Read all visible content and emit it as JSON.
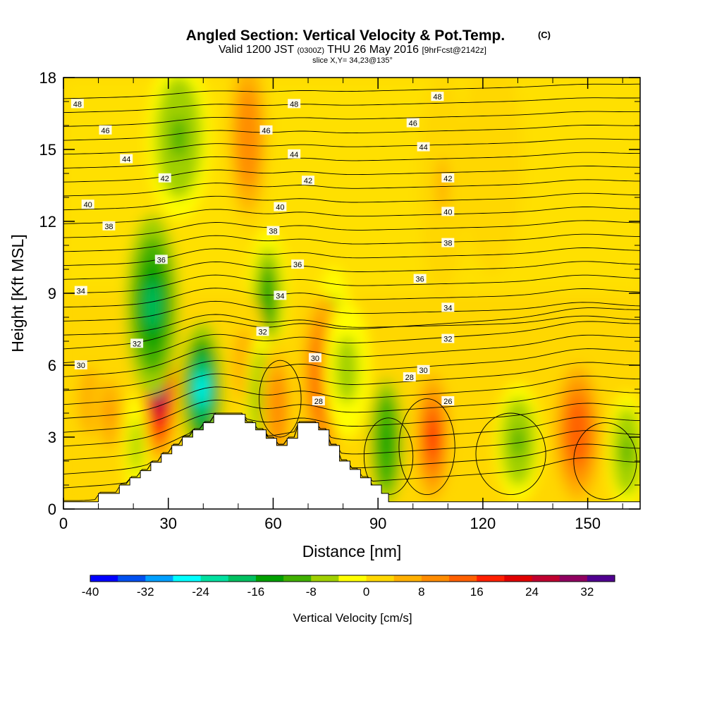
{
  "chart_data": {
    "type": "heatmap",
    "title": "Angled Section: Vertical Velocity & Pot.Temp.",
    "title_unit": "(C)",
    "subtitle": {
      "valid": "Valid 1200 JST",
      "utc": "(0300Z)",
      "date": "THU 26 May 2016",
      "forecast": "[9hrFcst@2142z]"
    },
    "slice_label": "slice X,Y= 34,23@135°",
    "xlabel": "Distance [nm]",
    "ylabel": "Height [Kft MSL]",
    "xlim": [
      0,
      165
    ],
    "ylim": [
      0,
      18
    ],
    "x_ticks": [
      "0",
      "30",
      "60",
      "90",
      "120",
      "150"
    ],
    "y_ticks": [
      "0",
      "3",
      "6",
      "9",
      "12",
      "15",
      "18"
    ],
    "colorbar": {
      "label": "Vertical Velocity [cm/s]",
      "tick_labels": [
        "-40",
        "-32",
        "-24",
        "-16",
        "-8",
        "0",
        "8",
        "16",
        "24",
        "32"
      ],
      "colors": [
        "#0000ff",
        "#0050f0",
        "#00a0ff",
        "#00ffff",
        "#00e0a0",
        "#00c060",
        "#00a000",
        "#40b000",
        "#a0d000",
        "#ffff00",
        "#ffd700",
        "#ffb000",
        "#ff8c00",
        "#ff6000",
        "#ff2000",
        "#e00000",
        "#c00030",
        "#900060",
        "#500090"
      ]
    },
    "terrain": [
      [
        0,
        0.3
      ],
      [
        10,
        0.3
      ],
      [
        10,
        0.65
      ],
      [
        16,
        0.65
      ],
      [
        16,
        1.0
      ],
      [
        19,
        1.0
      ],
      [
        19,
        1.3
      ],
      [
        22,
        1.3
      ],
      [
        22,
        1.6
      ],
      [
        25,
        1.6
      ],
      [
        25,
        1.95
      ],
      [
        28,
        1.95
      ],
      [
        28,
        2.3
      ],
      [
        31,
        2.3
      ],
      [
        31,
        2.65
      ],
      [
        34,
        2.65
      ],
      [
        34,
        3.0
      ],
      [
        37,
        3.0
      ],
      [
        37,
        3.3
      ],
      [
        40,
        3.3
      ],
      [
        40,
        3.6
      ],
      [
        43,
        3.6
      ],
      [
        43,
        3.95
      ],
      [
        52,
        3.95
      ],
      [
        52,
        3.6
      ],
      [
        55,
        3.6
      ],
      [
        55,
        3.3
      ],
      [
        58,
        3.3
      ],
      [
        58,
        2.95
      ],
      [
        61,
        2.95
      ],
      [
        61,
        2.65
      ],
      [
        64,
        2.65
      ],
      [
        64,
        2.95
      ],
      [
        67,
        2.95
      ],
      [
        67,
        3.6
      ],
      [
        73,
        3.6
      ],
      [
        73,
        3.3
      ],
      [
        76,
        3.3
      ],
      [
        76,
        2.65
      ],
      [
        79,
        2.65
      ],
      [
        79,
        2.0
      ],
      [
        82,
        2.0
      ],
      [
        82,
        1.65
      ],
      [
        85,
        1.65
      ],
      [
        85,
        1.3
      ],
      [
        88,
        1.3
      ],
      [
        88,
        1.0
      ],
      [
        91,
        1.0
      ],
      [
        91,
        0.65
      ],
      [
        93,
        0.65
      ],
      [
        93,
        0.3
      ],
      [
        165,
        0.3
      ]
    ],
    "velocity_cells": [
      {
        "x": 29,
        "z": 5.2,
        "w": 2.3,
        "h": 1.6,
        "v": 40
      },
      {
        "x": 42,
        "z": 5.0,
        "w": 2.8,
        "h": 1.5,
        "v": -30
      },
      {
        "x": 27,
        "z": 8.5,
        "w": 3.5,
        "h": 2.0,
        "v": -22
      },
      {
        "x": 35,
        "z": 15.5,
        "w": 4,
        "h": 1.8,
        "v": -10
      },
      {
        "x": 56,
        "z": 15.5,
        "w": 3,
        "h": 2.2,
        "v": 12
      },
      {
        "x": 62,
        "z": 8.8,
        "w": 2.5,
        "h": 1.5,
        "v": -14
      },
      {
        "x": 82,
        "z": 7.8,
        "w": 2,
        "h": 1.2,
        "v": -8
      },
      {
        "x": 55,
        "z": 6.0,
        "w": 3,
        "h": 1.6,
        "v": 8
      },
      {
        "x": 60,
        "z": 4.5,
        "w": 2,
        "h": 1.5,
        "v": -10
      },
      {
        "x": 65,
        "z": 4.2,
        "w": 2.2,
        "h": 1.6,
        "v": 12
      },
      {
        "x": 79,
        "z": 5.5,
        "w": 2.8,
        "h": 1.8,
        "v": 18
      },
      {
        "x": 86,
        "z": 5.8,
        "w": 3,
        "h": 1.5,
        "v": -9
      },
      {
        "x": 98,
        "z": 2.8,
        "w": 2.2,
        "h": 1.4,
        "v": -18
      },
      {
        "x": 112,
        "z": 3.0,
        "w": 2.3,
        "h": 1.4,
        "v": 20
      },
      {
        "x": 138,
        "z": 2.8,
        "w": 3,
        "h": 1.3,
        "v": -12
      },
      {
        "x": 156,
        "z": 3.2,
        "w": 3,
        "h": 1.5,
        "v": 18
      },
      {
        "x": 171,
        "z": 2.4,
        "w": 2.5,
        "h": 1.3,
        "v": -10
      },
      {
        "x": 115,
        "z": 13.5,
        "w": 3,
        "h": 2.5,
        "v": 5
      },
      {
        "x": 130,
        "z": 14.5,
        "w": 4,
        "h": 2.5,
        "v": 4
      },
      {
        "x": 22,
        "z": 2.6,
        "w": 1.5,
        "h": 1.2,
        "v": -8
      },
      {
        "x": 8,
        "z": 4.5,
        "w": 3,
        "h": 1.5,
        "v": 6
      },
      {
        "x": 14,
        "z": 4.0,
        "w": 2,
        "h": 1.0,
        "v": 10
      }
    ],
    "theta_contours": [
      {
        "label": "26",
        "base": 0.3
      },
      {
        "label": "28",
        "base": 1.3
      },
      {
        "label": "30",
        "base": 2.5
      },
      {
        "label": "32",
        "base": 3.8
      },
      {
        "label": "34",
        "base": 5.1
      },
      {
        "label": "36",
        "base": 6.3
      },
      {
        "label": "38",
        "base": 7.4
      },
      {
        "label": "40",
        "base": 8.4
      },
      {
        "label": "42",
        "base": 9.5
      },
      {
        "label": "44",
        "base": 10.6
      },
      {
        "label": "46",
        "base": 11.7
      },
      {
        "label": "48",
        "base": 12.8
      }
    ],
    "contour_labels": [
      {
        "text": "48",
        "x": 4,
        "z": 16.9
      },
      {
        "text": "46",
        "x": 12,
        "z": 15.8
      },
      {
        "text": "44",
        "x": 18,
        "z": 14.6
      },
      {
        "text": "42",
        "x": 29,
        "z": 13.8
      },
      {
        "text": "40",
        "x": 7,
        "z": 12.7
      },
      {
        "text": "38",
        "x": 13,
        "z": 11.8
      },
      {
        "text": "36",
        "x": 28,
        "z": 10.4
      },
      {
        "text": "34",
        "x": 5,
        "z": 9.1
      },
      {
        "text": "32",
        "x": 21,
        "z": 6.9
      },
      {
        "text": "30",
        "x": 5,
        "z": 6.0
      },
      {
        "text": "48",
        "x": 66,
        "z": 16.9
      },
      {
        "text": "46",
        "x": 58,
        "z": 15.8
      },
      {
        "text": "44",
        "x": 66,
        "z": 14.8
      },
      {
        "text": "42",
        "x": 70,
        "z": 13.7
      },
      {
        "text": "40",
        "x": 62,
        "z": 12.6
      },
      {
        "text": "38",
        "x": 60,
        "z": 11.6
      },
      {
        "text": "36",
        "x": 67,
        "z": 10.2
      },
      {
        "text": "34",
        "x": 62,
        "z": 8.9
      },
      {
        "text": "32",
        "x": 57,
        "z": 7.4
      },
      {
        "text": "30",
        "x": 72,
        "z": 6.3
      },
      {
        "text": "28",
        "x": 73,
        "z": 4.5
      },
      {
        "text": "48",
        "x": 107,
        "z": 17.2
      },
      {
        "text": "46",
        "x": 100,
        "z": 16.1
      },
      {
        "text": "44",
        "x": 103,
        "z": 15.1
      },
      {
        "text": "42",
        "x": 110,
        "z": 13.8
      },
      {
        "text": "40",
        "x": 110,
        "z": 12.4
      },
      {
        "text": "38",
        "x": 110,
        "z": 11.1
      },
      {
        "text": "36",
        "x": 102,
        "z": 9.6
      },
      {
        "text": "34",
        "x": 110,
        "z": 8.4
      },
      {
        "text": "32",
        "x": 110,
        "z": 7.1
      },
      {
        "text": "30",
        "x": 103,
        "z": 5.8
      },
      {
        "text": "28",
        "x": 99,
        "z": 5.5
      },
      {
        "text": "26",
        "x": 110,
        "z": 4.5
      }
    ]
  }
}
